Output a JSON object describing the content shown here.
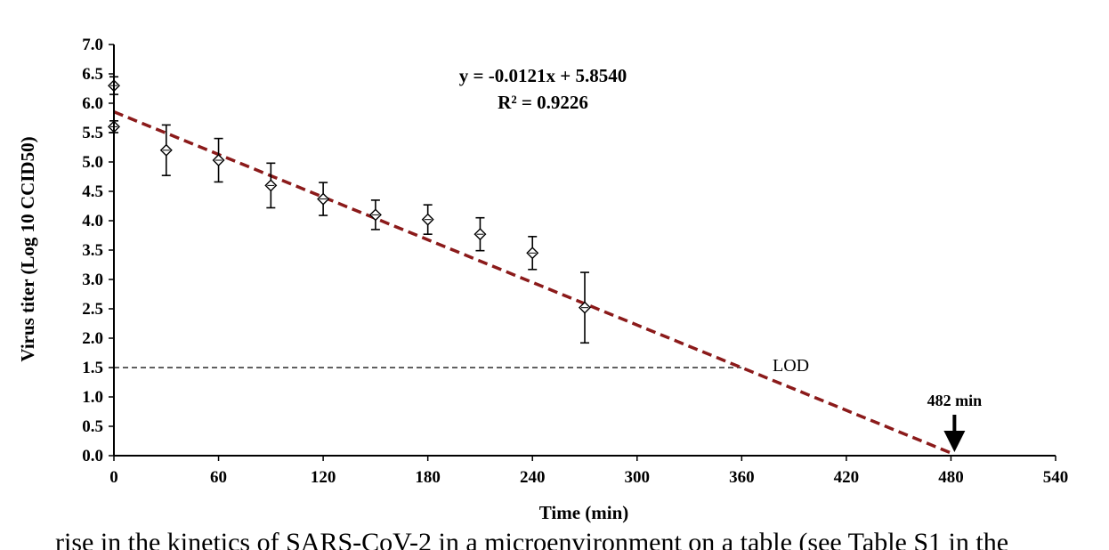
{
  "chart_data": {
    "type": "scatter",
    "xlabel": "Time (min)",
    "ylabel": "Virus titer (Log 10 CCID50)",
    "xlim": [
      0,
      540
    ],
    "ylim": [
      0,
      7
    ],
    "x_ticks": [
      "0",
      "60",
      "120",
      "180",
      "240",
      "300",
      "360",
      "420",
      "480",
      "540"
    ],
    "y_ticks": [
      "0.0",
      "0.5",
      "1.0",
      "1.5",
      "2.0",
      "2.5",
      "3.0",
      "3.5",
      "4.0",
      "4.5",
      "5.0",
      "5.5",
      "6.0",
      "6.5",
      "7.0"
    ],
    "grid": false,
    "points": [
      {
        "x": 0,
        "y": 6.3,
        "err": 0.15
      },
      {
        "x": 0,
        "y": 5.6,
        "err": 0.1
      },
      {
        "x": 30,
        "y": 5.2,
        "err": 0.43
      },
      {
        "x": 60,
        "y": 5.03,
        "err": 0.37
      },
      {
        "x": 90,
        "y": 4.6,
        "err": 0.38
      },
      {
        "x": 120,
        "y": 4.37,
        "err": 0.28
      },
      {
        "x": 150,
        "y": 4.1,
        "err": 0.25
      },
      {
        "x": 180,
        "y": 4.02,
        "err": 0.25
      },
      {
        "x": 210,
        "y": 3.77,
        "err": 0.28
      },
      {
        "x": 240,
        "y": 3.45,
        "err": 0.28
      },
      {
        "x": 270,
        "y": 2.52,
        "err": 0.6
      }
    ],
    "trendline": {
      "slope": -0.0121,
      "intercept": 5.854,
      "x_end": 482,
      "color": "#8b1a1a"
    },
    "equation": "y = -0.0121x + 5.8540",
    "r_squared": "R² = 0.9226",
    "lod": {
      "label": "LOD",
      "y": 1.5
    },
    "annotation": {
      "label": "482 min",
      "x": 482
    }
  },
  "caption": "rise in the kinetics of SARS-CoV-2 in a microenvironment on a table (see Table S1 in the"
}
